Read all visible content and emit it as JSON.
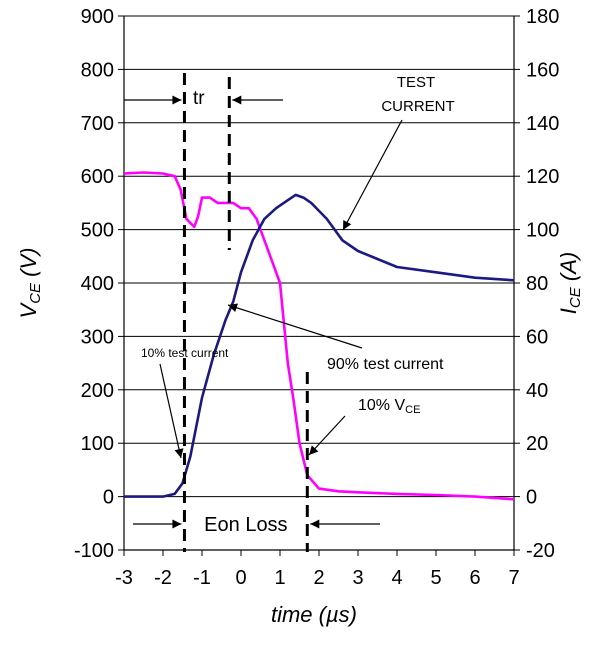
{
  "chart_data": {
    "type": "line",
    "xlabel": "time (µs)",
    "ylabel_left": {
      "main": "V",
      "sub": "CE",
      "unit": " (V)"
    },
    "ylabel_right": {
      "main": "I",
      "sub": "CE",
      "unit": " (A)"
    },
    "xlim": [
      -3,
      7
    ],
    "ylim_left": [
      -100,
      900
    ],
    "ylim_right": [
      -20,
      180
    ],
    "x_ticks": [
      "-3",
      "-2",
      "-1",
      "0",
      "1",
      "2",
      "3",
      "4",
      "5",
      "6",
      "7"
    ],
    "y_left_ticks": [
      "-100",
      "0",
      "100",
      "200",
      "300",
      "400",
      "500",
      "600",
      "700",
      "800",
      "900"
    ],
    "y_right_ticks": [
      "-20",
      "0",
      "20",
      "40",
      "60",
      "80",
      "100",
      "120",
      "140",
      "160",
      "180"
    ],
    "grid": "horizontal",
    "series": [
      {
        "color": "#ff00ff",
        "axis": "left",
        "x": [
          -3,
          -2.5,
          -2,
          -1.7,
          -1.55,
          -1.4,
          -1.2,
          -1.1,
          -1,
          -0.8,
          -0.6,
          -0.4,
          -0.2,
          0,
          0.2,
          0.4,
          0.6,
          0.8,
          1,
          1.2,
          1.35,
          1.5,
          1.6,
          1.7,
          2,
          2.5,
          3,
          4,
          5,
          6,
          7
        ],
        "y": [
          605,
          607,
          605,
          600,
          575,
          520,
          505,
          525,
          560,
          560,
          550,
          550,
          550,
          540,
          540,
          520,
          480,
          440,
          400,
          250,
          180,
          100,
          70,
          40,
          15,
          10,
          8,
          5,
          3,
          0,
          -5
        ]
      },
      {
        "color": "#1a1a80",
        "axis": "right",
        "x": [
          -3,
          -2.5,
          -2,
          -1.7,
          -1.5,
          -1.3,
          -1,
          -0.7,
          -0.4,
          -0.2,
          0,
          0.3,
          0.6,
          0.9,
          1.2,
          1.4,
          1.6,
          1.8,
          2.2,
          2.6,
          3,
          3.5,
          4,
          5,
          6,
          7
        ],
        "y": [
          0,
          0,
          0,
          1,
          5,
          15,
          37,
          53,
          66,
          73,
          84,
          96,
          104,
          108,
          111,
          113,
          112,
          110,
          104,
          96,
          92,
          89,
          86,
          84,
          82,
          81
        ]
      }
    ],
    "annotations": {
      "tr": "tr",
      "test_current": [
        "TEST",
        "CURRENT"
      ],
      "ten_pct_current": "10% test current",
      "ninety_pct_current": "90% test current",
      "ten_pct_vce_main": "10% V",
      "ten_pct_vce_sub": "CE",
      "eon_loss": "Eon Loss"
    },
    "markers": {
      "dashed_x": [
        -1.45,
        -0.3,
        1.7
      ]
    }
  }
}
